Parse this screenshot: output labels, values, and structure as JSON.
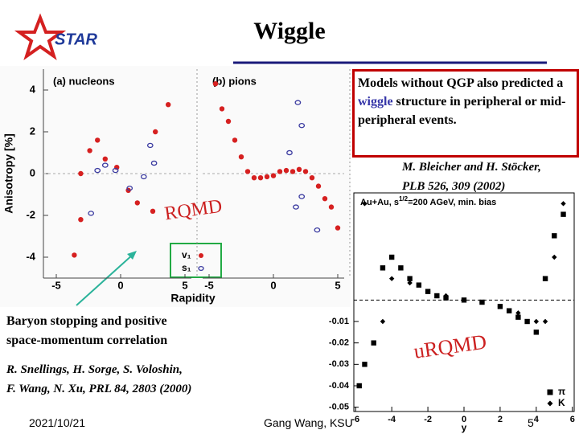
{
  "title": "Wiggle",
  "logo": "STAR",
  "callout": {
    "parts": [
      "Models without QGP also predicted a ",
      "wiggle",
      " structure in peripheral or mid-peripheral events."
    ]
  },
  "ref1": {
    "lines": [
      "M. Bleicher and H. Stöcker,",
      "PLB 526, 309 (2002)"
    ]
  },
  "left_note": {
    "lines": [
      "Baryon stopping and positive",
      "space-momentum correlation"
    ]
  },
  "ref2": {
    "lines": [
      "R. Snellings, H. Sorge, S. Voloshin,",
      "F. Wang, N. Xu, PRL 84, 2803 (2000)"
    ]
  },
  "rqmd": "RQMD",
  "urqmd": "uRQMD",
  "footer": {
    "date": "2021/10/21",
    "author": "Gang Wang, KSU",
    "page": "5"
  },
  "plot1": {
    "type": "scatter",
    "y_label": "Anisotropy [%]",
    "x_label": "Rapidity",
    "ylim": [
      -5,
      5
    ],
    "yticks": [
      4,
      2,
      0,
      -2,
      -4
    ],
    "panels": [
      {
        "label": "(a) nucleons",
        "xlim": [
          -6,
          5.5
        ],
        "xticks": [
          -5,
          0,
          5
        ],
        "series": [
          {
            "name": "v₁",
            "color": "#d62020",
            "marker": "filled-circle",
            "x": [
              -3.6,
              -3.1,
              -3.1,
              -2.4,
              -1.8,
              -1.2,
              -0.3,
              0.6,
              1.3,
              2.5,
              2.7,
              3.7
            ],
            "values": [
              -3.9,
              -2.2,
              0,
              1.1,
              1.6,
              0.7,
              0.3,
              -0.8,
              -1.4,
              -1.8,
              2.0,
              3.3
            ]
          },
          {
            "name": "s₁",
            "color": "#3a3aa0",
            "marker": "open-circle",
            "x": [
              -2.3,
              -1.8,
              -1.2,
              -0.4,
              0.7,
              1.8,
              2.3,
              2.6
            ],
            "values": [
              -1.9,
              0.15,
              0.4,
              0.15,
              -0.7,
              -0.15,
              1.35,
              0.5
            ]
          }
        ]
      },
      {
        "label": "(b) pions",
        "xlim": [
          -5.5,
          5.5
        ],
        "xticks": [
          -5,
          0,
          5
        ],
        "series": [
          {
            "color": "#d62020",
            "marker": "filled-circle",
            "x": [
              -4.5,
              -4,
              -3.5,
              -3,
              -2.5,
              -2,
              -1.5,
              -1,
              -0.5,
              0,
              0.5,
              1,
              1.5,
              2,
              2.5,
              3,
              3.5,
              4,
              4.5,
              5
            ],
            "values": [
              4.3,
              3.1,
              2.5,
              1.6,
              0.8,
              0.1,
              -0.2,
              -0.2,
              -0.15,
              -0.1,
              0.1,
              0.15,
              0.1,
              0.2,
              0.1,
              -0.2,
              -0.6,
              -1.2,
              -1.6,
              -2.6
            ]
          },
          {
            "color": "#3a3aa0",
            "marker": "open-circle",
            "x": [
              1.25,
              1.75,
              1.9,
              2.2,
              2.2,
              3.4
            ],
            "values": [
              1,
              -1.6,
              3.4,
              2.3,
              -1.1,
              -2.7
            ]
          }
        ]
      }
    ]
  },
  "plot2": {
    "type": "scatter",
    "title_parts": [
      "Au+Au, s",
      "1/2",
      "=200 AGeV, min. bias"
    ],
    "x_label": "y",
    "xlim": [
      -6.1,
      6.1
    ],
    "xticks": [
      -6,
      -4,
      -2,
      0,
      2,
      4,
      6
    ],
    "ylim": [
      -0.052,
      0.05
    ],
    "yticks": [
      -0.01,
      -0.02,
      -0.03,
      -0.04,
      -0.05
    ],
    "series": [
      {
        "name": "π",
        "color": "#000000",
        "marker": "square",
        "x": [
          -5.8,
          -5.5,
          -5,
          -4.5,
          -4,
          -3.5,
          -3,
          -2.5,
          -2,
          -1.5,
          -1,
          0,
          1,
          2,
          2.5,
          3,
          3.5,
          4,
          4.5,
          5,
          5.5
        ],
        "values": [
          -0.04,
          -0.03,
          -0.02,
          0.015,
          0.02,
          0.015,
          0.01,
          0.007,
          0.004,
          0.002,
          0.001,
          0,
          -0.001,
          -0.003,
          -0.005,
          -0.008,
          -0.01,
          -0.015,
          0.01,
          0.03,
          0.04
        ]
      },
      {
        "name": "K",
        "color": "#000000",
        "marker": "diamond",
        "x": [
          -5.5,
          -4.5,
          -4,
          -3,
          -2,
          -1,
          1,
          2,
          3,
          4,
          4.5,
          5,
          5.5
        ],
        "values": [
          0.045,
          -0.01,
          0.01,
          0.008,
          0.004,
          0.002,
          -0.001,
          -0.003,
          -0.006,
          -0.01,
          -0.01,
          0.02,
          0.045
        ]
      }
    ]
  }
}
